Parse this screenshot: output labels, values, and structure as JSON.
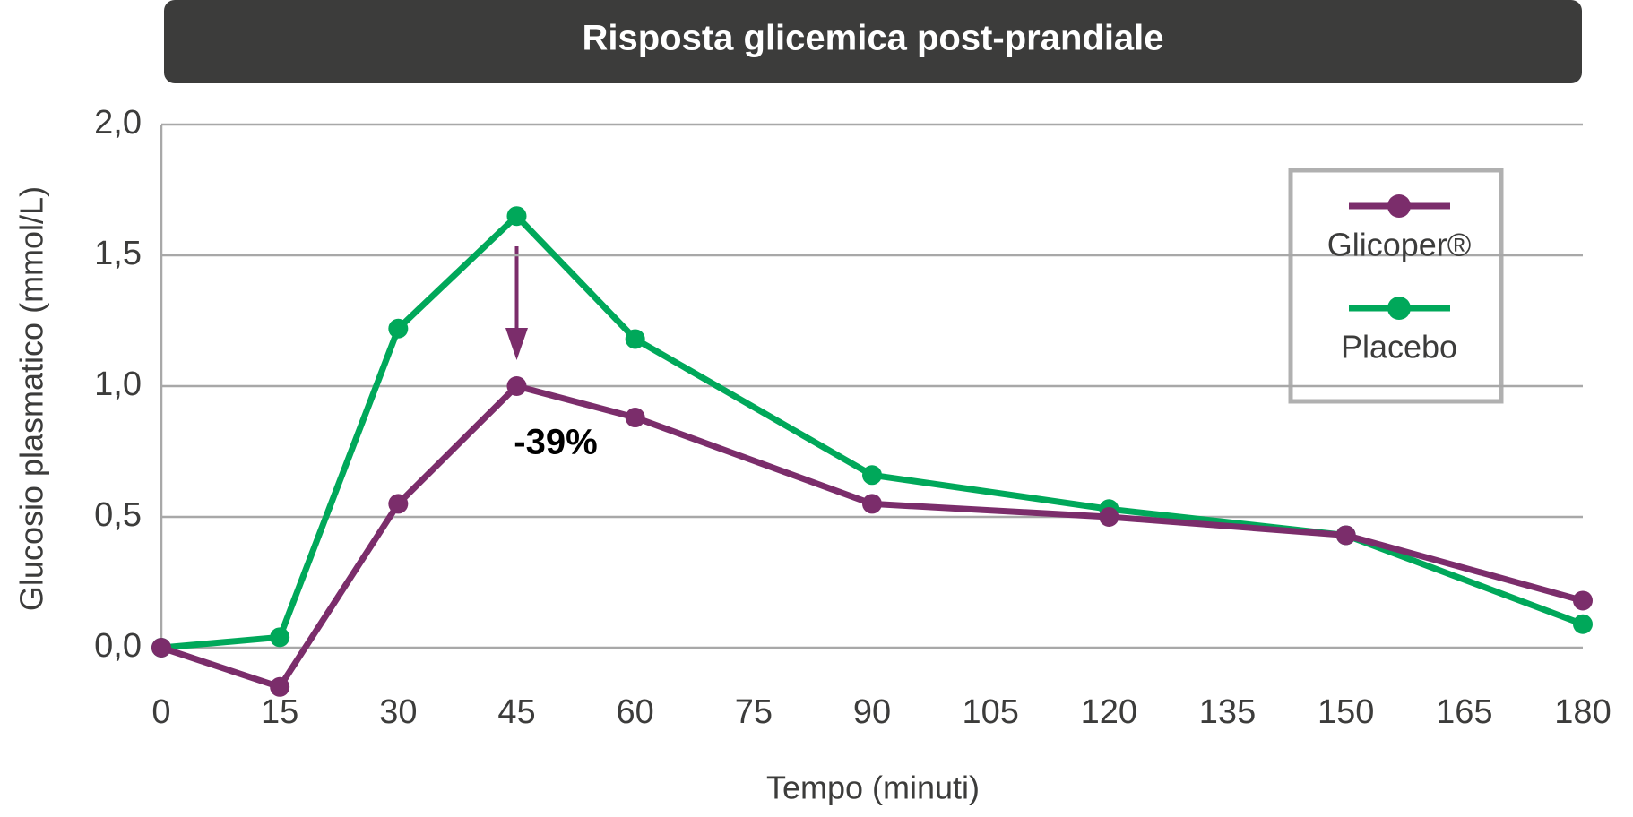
{
  "chart_data": {
    "type": "line",
    "title": "Risposta glicemica post-prandiale",
    "x_label": "Tempo (minuti)",
    "y_label": "Glucosio plasmatico (mmol/L)",
    "x": [
      0,
      15,
      30,
      45,
      60,
      90,
      120,
      150,
      180
    ],
    "series": [
      {
        "name": "Glicoper®",
        "color": "#7b2d6b",
        "values": [
          0,
          -0.15,
          0.55,
          1.0,
          0.88,
          0.55,
          0.5,
          0.43,
          0.18
        ]
      },
      {
        "name": "Placebo",
        "color": "#00a85a",
        "values": [
          0,
          0.04,
          1.22,
          1.65,
          1.18,
          0.66,
          0.53,
          0.43,
          0.09
        ]
      }
    ],
    "xlim": [
      0,
      180
    ],
    "xticks": [
      0,
      15,
      30,
      45,
      60,
      75,
      90,
      105,
      120,
      135,
      150,
      165,
      180
    ],
    "ylim": [
      0,
      2
    ],
    "yticks": [
      {
        "value": 0,
        "label": "0,0"
      },
      {
        "value": 0.5,
        "label": "0,5"
      },
      {
        "value": 1,
        "label": "1,0"
      },
      {
        "value": 1.5,
        "label": "1,5"
      },
      {
        "value": 2,
        "label": "2,0"
      }
    ],
    "grid": true,
    "legend": "upper right",
    "annotation": "-39%"
  }
}
